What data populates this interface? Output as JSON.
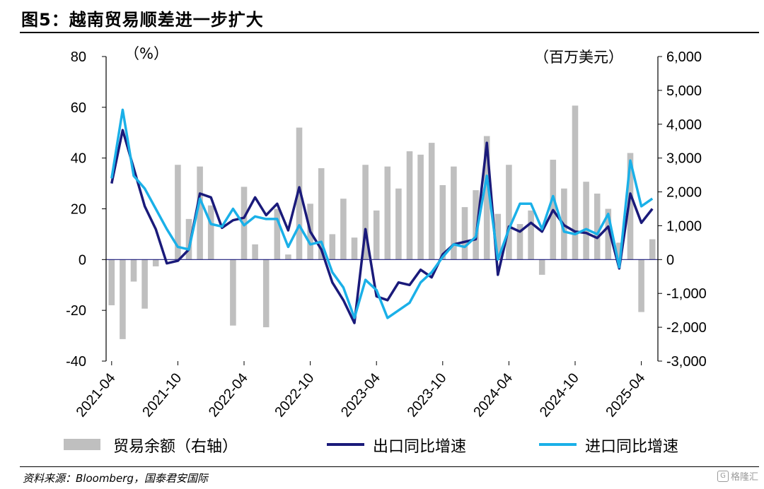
{
  "title": "图5：越南贸易顺差进一步扩大",
  "source": "资料来源：Bloomberg，国泰君安国际",
  "watermark": "格隆汇",
  "chart_data": {
    "type": "bar+line",
    "y_left": {
      "unit": "（%）",
      "min": -40,
      "max": 80,
      "ticks": [
        "-40",
        "-20",
        "0",
        "20",
        "40",
        "60",
        "80"
      ]
    },
    "y_right": {
      "unit": "（百万美元）",
      "min": -3000,
      "max": 6000,
      "ticks": [
        "-3,000",
        "-2,000",
        "-1,000",
        "0",
        "1,000",
        "2,000",
        "3,000",
        "4,000",
        "5,000",
        "6,000"
      ]
    },
    "x_ticks": [
      "2021-04",
      "2021-10",
      "2022-04",
      "2022-10",
      "2023-04",
      "2023-10",
      "2024-04",
      "2024-10",
      "2025-04"
    ],
    "x_tick_index": [
      0,
      6,
      12,
      18,
      24,
      30,
      36,
      42,
      48
    ],
    "months": [
      "2021-03",
      "2021-04",
      "2021-05",
      "2021-06",
      "2021-07",
      "2021-08",
      "2021-09",
      "2021-10",
      "2021-11",
      "2021-12",
      "2022-01",
      "2022-02",
      "2022-03",
      "2022-04",
      "2022-05",
      "2022-06",
      "2022-07",
      "2022-08",
      "2022-09",
      "2022-10",
      "2022-11",
      "2022-12",
      "2023-01",
      "2023-02",
      "2023-03",
      "2023-04",
      "2023-05",
      "2023-06",
      "2023-07",
      "2023-08",
      "2023-09",
      "2023-10",
      "2023-11",
      "2023-12",
      "2024-01",
      "2024-02",
      "2024-03",
      "2024-04",
      "2024-05",
      "2024-06",
      "2024-07",
      "2024-08",
      "2024-09",
      "2024-10",
      "2024-11",
      "2024-12",
      "2025-01",
      "2025-02",
      "2025-03",
      "2025-04"
    ],
    "series": [
      {
        "name": "贸易余额（右轴）",
        "axis": "right",
        "kind": "bar",
        "color": "#bfbfbf",
        "values": [
          -1350,
          -2350,
          -650,
          -1450,
          -200,
          0,
          2800,
          1200,
          2750,
          1600,
          0,
          -1950,
          2150,
          450,
          -2000,
          1500,
          150,
          3900,
          1650,
          2700,
          750,
          1800,
          650,
          2800,
          1450,
          2750,
          2100,
          3200,
          3100,
          3450,
          2200,
          2750,
          1550,
          2050,
          3650,
          1350,
          2800,
          1050,
          1450,
          -450,
          2950,
          2100,
          4550,
          2300,
          1950,
          1500,
          500,
          3150,
          -1550,
          600
        ]
      },
      {
        "name": "出口同比增速",
        "axis": "left",
        "kind": "line",
        "color": "#1a1a7a",
        "values": [
          30,
          51,
          36,
          21,
          12,
          -1.5,
          -0.5,
          4,
          26,
          24.5,
          12.5,
          15.5,
          16.5,
          24.5,
          17.5,
          22,
          11.5,
          28.5,
          11,
          4,
          -9,
          -16,
          -25,
          12,
          -14.5,
          -16,
          -9,
          -10,
          -4,
          -7,
          2,
          6,
          7,
          8,
          46,
          -6,
          13,
          11,
          14.5,
          11,
          19.5,
          13.5,
          11,
          10.5,
          8.5,
          13,
          -3.5,
          26,
          14.5,
          20
        ]
      },
      {
        "name": "进口同比增速",
        "axis": "left",
        "kind": "line",
        "color": "#1ab0e8",
        "values": [
          32,
          59,
          33,
          28,
          20,
          12,
          5,
          4,
          24,
          14,
          13,
          20,
          13.5,
          17,
          16,
          16,
          5,
          13.5,
          6,
          7,
          -5,
          -11,
          -23,
          -8,
          -12,
          -23,
          -20,
          -17,
          -9,
          -5,
          1,
          6,
          5,
          9,
          33,
          0,
          12,
          22,
          22,
          12,
          25,
          11,
          10,
          12,
          10,
          18,
          -3,
          39,
          21,
          24
        ]
      }
    ]
  }
}
